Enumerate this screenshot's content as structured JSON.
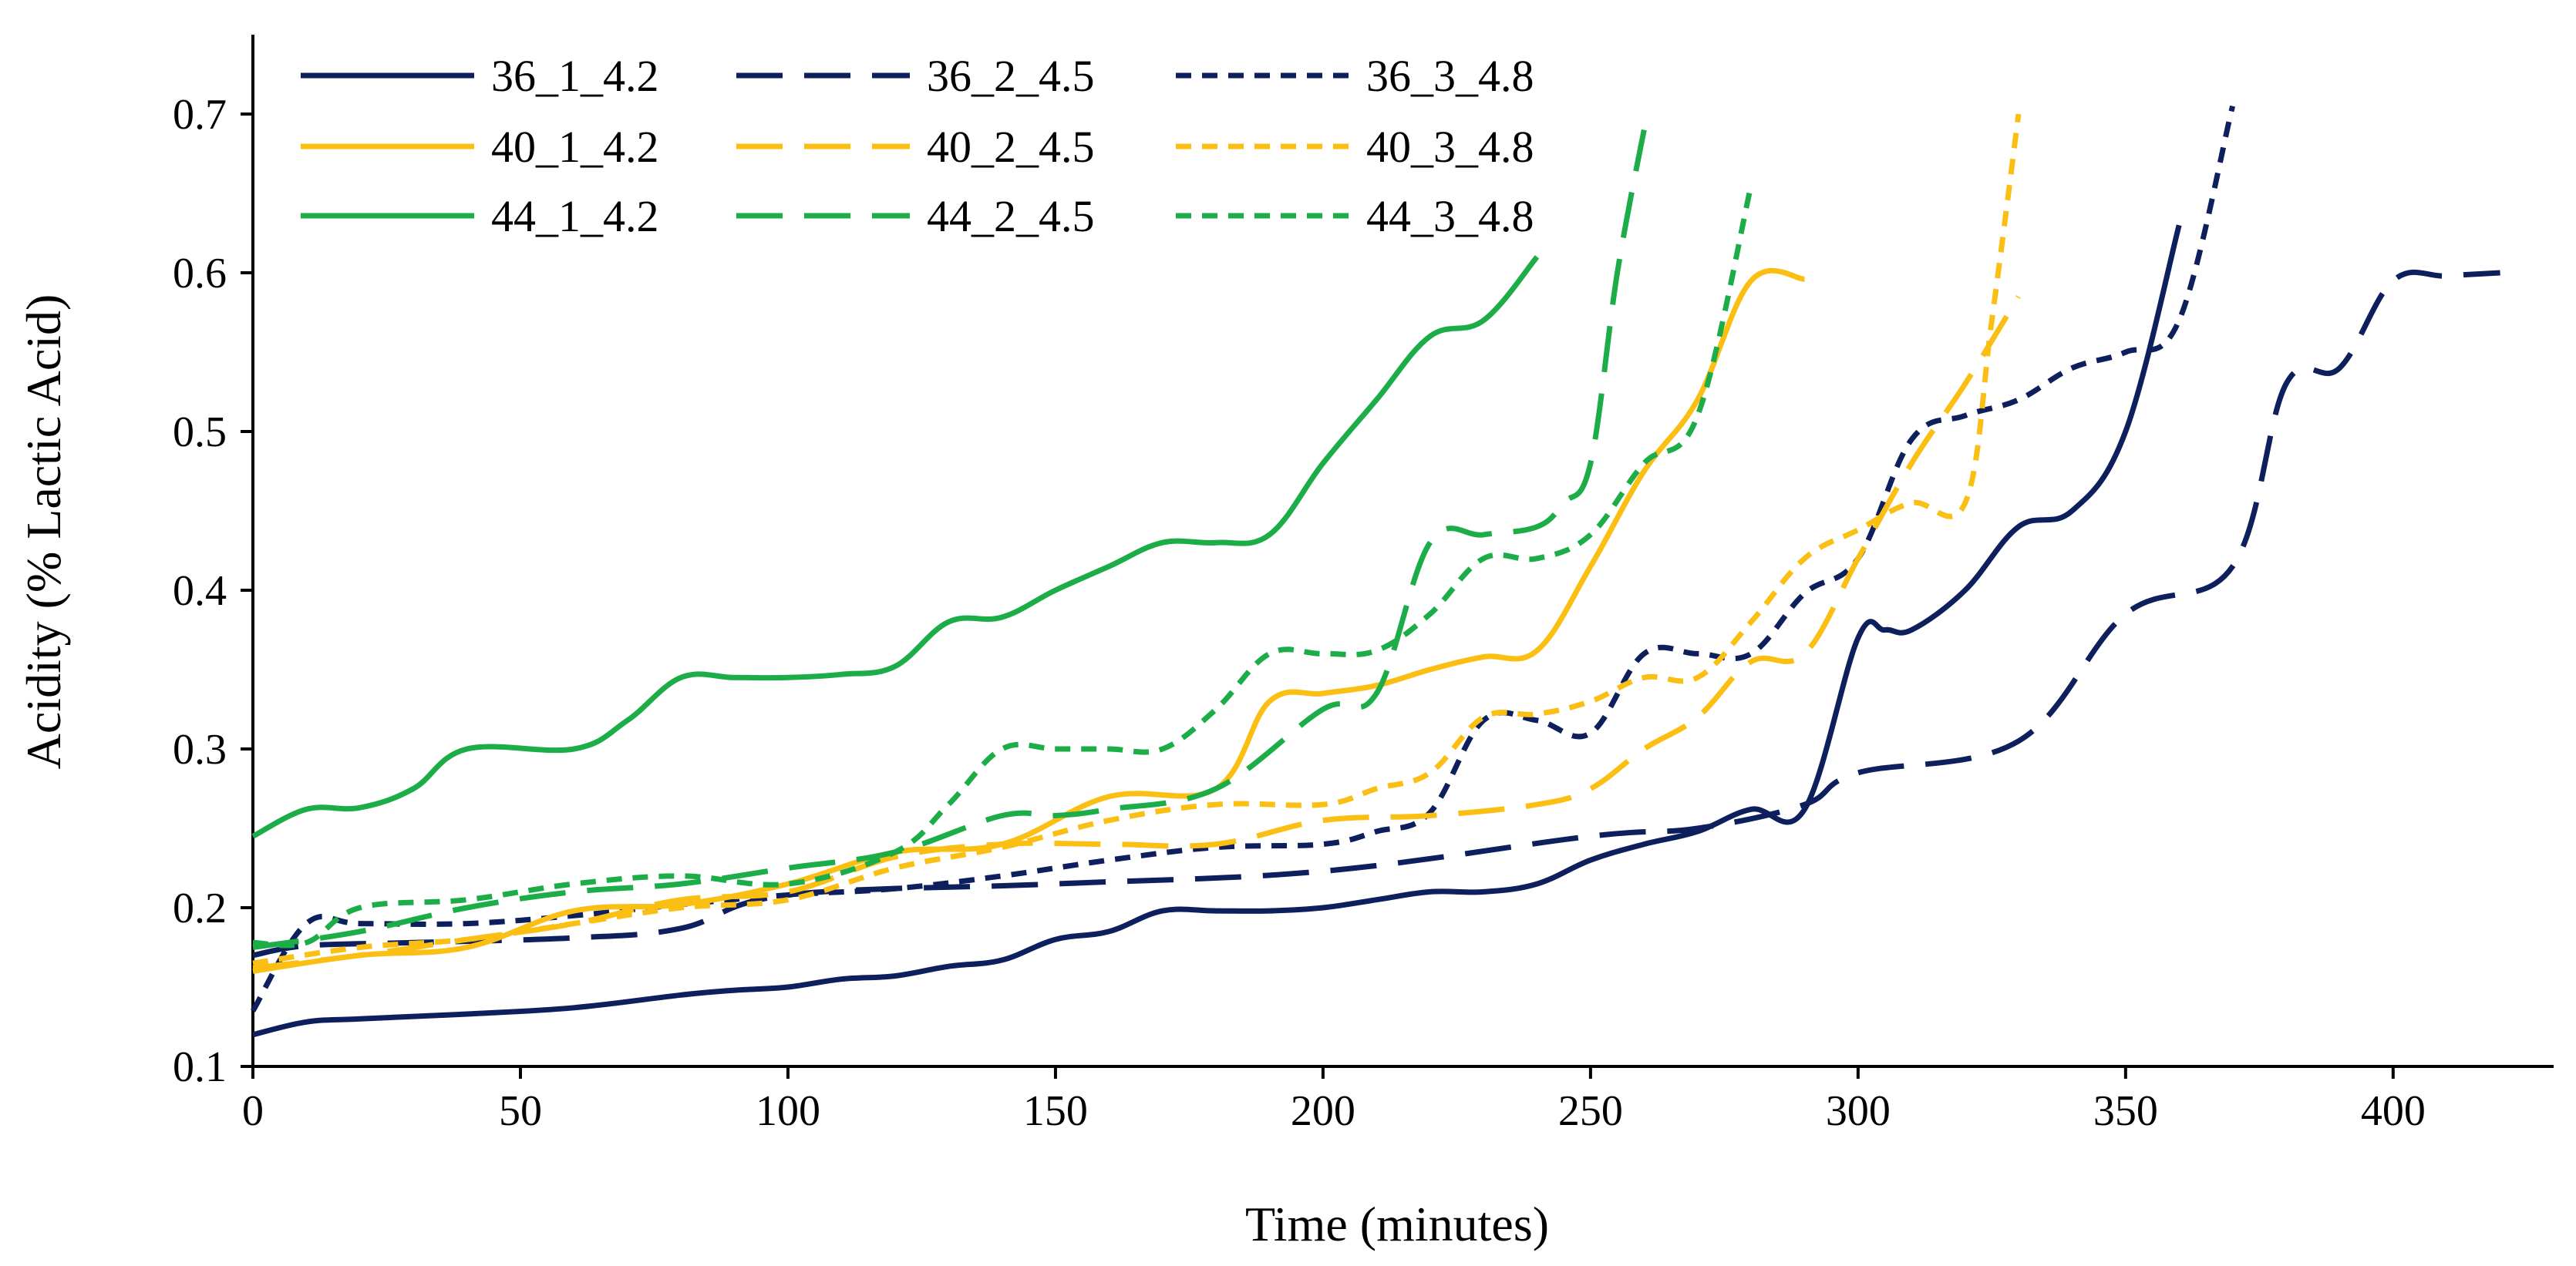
{
  "chart_data": {
    "type": "line",
    "xlabel": "Time (minutes)",
    "ylabel": "Acidity (% Lactic Acid)",
    "xlim": [
      0,
      430
    ],
    "ylim": [
      0.1,
      0.75
    ],
    "x_ticks": [
      0,
      50,
      100,
      150,
      200,
      250,
      300,
      350,
      400
    ],
    "y_ticks": [
      0.1,
      0.2,
      0.3,
      0.4,
      0.5,
      0.6,
      0.7
    ],
    "x_tick_labels": [
      "0",
      "50",
      "100",
      "150",
      "200",
      "250",
      "300",
      "350",
      "400"
    ],
    "y_tick_labels": [
      "0.1",
      "0.2",
      "0.3",
      "0.4",
      "0.5",
      "0.6",
      "0.7"
    ],
    "grid": false,
    "legend_position": "top-left",
    "series": [
      {
        "name": "36_1_4.2",
        "color": "#0d1f5c",
        "dash": "solid",
        "x": [
          0,
          10,
          20,
          40,
          60,
          80,
          90,
          100,
          110,
          120,
          130,
          140,
          150,
          160,
          170,
          180,
          190,
          200,
          210,
          220,
          230,
          240,
          250,
          260,
          270,
          280,
          290,
          300,
          305,
          310,
          320,
          330,
          340,
          350,
          360
        ],
        "y": [
          0.12,
          0.128,
          0.13,
          0.133,
          0.137,
          0.145,
          0.148,
          0.15,
          0.155,
          0.157,
          0.163,
          0.167,
          0.18,
          0.185,
          0.198,
          0.198,
          0.198,
          0.2,
          0.205,
          0.21,
          0.21,
          0.215,
          0.23,
          0.24,
          0.248,
          0.262,
          0.262,
          0.37,
          0.375,
          0.375,
          0.4,
          0.44,
          0.45,
          0.5,
          0.63
        ]
      },
      {
        "name": "36_2_4.5",
        "color": "#0d1f5c",
        "dash": "long",
        "x": [
          0,
          10,
          30,
          60,
          80,
          100,
          150,
          200,
          250,
          270,
          290,
          300,
          330,
          350,
          370,
          380,
          390,
          400,
          410,
          420
        ],
        "y": [
          0.17,
          0.176,
          0.178,
          0.181,
          0.187,
          0.208,
          0.215,
          0.223,
          0.245,
          0.25,
          0.265,
          0.285,
          0.305,
          0.385,
          0.415,
          0.53,
          0.54,
          0.595,
          0.598,
          0.6
        ]
      },
      {
        "name": "36_3_4.8",
        "color": "#0d1f5c",
        "dash": "short",
        "x": [
          0,
          10,
          20,
          40,
          60,
          80,
          100,
          120,
          140,
          160,
          180,
          200,
          210,
          220,
          230,
          240,
          250,
          260,
          270,
          280,
          290,
          300,
          310,
          320,
          330,
          340,
          350,
          360,
          370
        ],
        "y": [
          0.135,
          0.19,
          0.19,
          0.19,
          0.195,
          0.202,
          0.208,
          0.212,
          0.22,
          0.23,
          0.238,
          0.24,
          0.248,
          0.26,
          0.318,
          0.318,
          0.31,
          0.36,
          0.36,
          0.36,
          0.398,
          0.42,
          0.495,
          0.51,
          0.52,
          0.54,
          0.55,
          0.57,
          0.705
        ]
      },
      {
        "name": "40_1_4.2",
        "color": "#fbbf14",
        "dash": "solid",
        "x": [
          0,
          20,
          40,
          60,
          80,
          100,
          120,
          140,
          160,
          180,
          190,
          200,
          210,
          220,
          230,
          240,
          250,
          260,
          270,
          280,
          290
        ],
        "y": [
          0.16,
          0.17,
          0.175,
          0.198,
          0.202,
          0.215,
          0.235,
          0.24,
          0.27,
          0.275,
          0.33,
          0.335,
          0.34,
          0.35,
          0.358,
          0.362,
          0.415,
          0.475,
          0.52,
          0.595,
          0.596
        ]
      },
      {
        "name": "40_2_4.5",
        "color": "#fbbf14",
        "dash": "long",
        "x": [
          0,
          20,
          40,
          60,
          80,
          100,
          120,
          140,
          160,
          180,
          200,
          220,
          240,
          250,
          260,
          270,
          280,
          290,
          300,
          310,
          320,
          330
        ],
        "y": [
          0.162,
          0.17,
          0.18,
          0.19,
          0.205,
          0.21,
          0.232,
          0.24,
          0.24,
          0.24,
          0.255,
          0.258,
          0.265,
          0.275,
          0.3,
          0.32,
          0.355,
          0.36,
          0.42,
          0.48,
          0.53,
          0.585
        ]
      },
      {
        "name": "40_3_4.8",
        "color": "#fbbf14",
        "dash": "short",
        "x": [
          0,
          20,
          40,
          60,
          80,
          100,
          120,
          140,
          160,
          180,
          200,
          210,
          220,
          230,
          240,
          250,
          260,
          270,
          280,
          290,
          300,
          310,
          320,
          325,
          330
        ],
        "y": [
          0.165,
          0.175,
          0.18,
          0.19,
          0.2,
          0.205,
          0.225,
          0.238,
          0.255,
          0.265,
          0.265,
          0.275,
          0.285,
          0.32,
          0.322,
          0.33,
          0.345,
          0.345,
          0.38,
          0.42,
          0.438,
          0.455,
          0.455,
          0.57,
          0.7
        ]
      },
      {
        "name": "44_1_4.2",
        "color": "#1cad48",
        "dash": "solid",
        "x": [
          0,
          10,
          20,
          30,
          40,
          60,
          70,
          80,
          90,
          100,
          110,
          120,
          130,
          140,
          150,
          160,
          170,
          180,
          190,
          200,
          210,
          220,
          230,
          240
        ],
        "y": [
          0.245,
          0.262,
          0.263,
          0.275,
          0.3,
          0.3,
          0.318,
          0.345,
          0.345,
          0.345,
          0.347,
          0.352,
          0.38,
          0.383,
          0.4,
          0.415,
          0.43,
          0.43,
          0.435,
          0.48,
          0.52,
          0.56,
          0.57,
          0.61
        ]
      },
      {
        "name": "44_2_4.5",
        "color": "#1cad48",
        "dash": "long",
        "x": [
          0,
          20,
          40,
          60,
          80,
          100,
          120,
          140,
          150,
          160,
          180,
          200,
          210,
          220,
          230,
          240,
          245,
          250,
          255,
          260
        ],
        "y": [
          0.175,
          0.185,
          0.2,
          0.21,
          0.215,
          0.225,
          0.235,
          0.258,
          0.258,
          0.262,
          0.275,
          0.325,
          0.335,
          0.43,
          0.435,
          0.44,
          0.455,
          0.48,
          0.6,
          0.69
        ]
      },
      {
        "name": "44_3_4.8",
        "color": "#1cad48",
        "dash": "short",
        "x": [
          0,
          10,
          20,
          40,
          60,
          80,
          100,
          120,
          130,
          140,
          150,
          160,
          170,
          180,
          190,
          200,
          210,
          220,
          230,
          240,
          250,
          260,
          270,
          280
        ],
        "y": [
          0.178,
          0.178,
          0.2,
          0.205,
          0.215,
          0.22,
          0.215,
          0.235,
          0.265,
          0.3,
          0.3,
          0.3,
          0.3,
          0.325,
          0.36,
          0.36,
          0.362,
          0.385,
          0.42,
          0.42,
          0.435,
          0.48,
          0.51,
          0.655
        ]
      }
    ]
  }
}
